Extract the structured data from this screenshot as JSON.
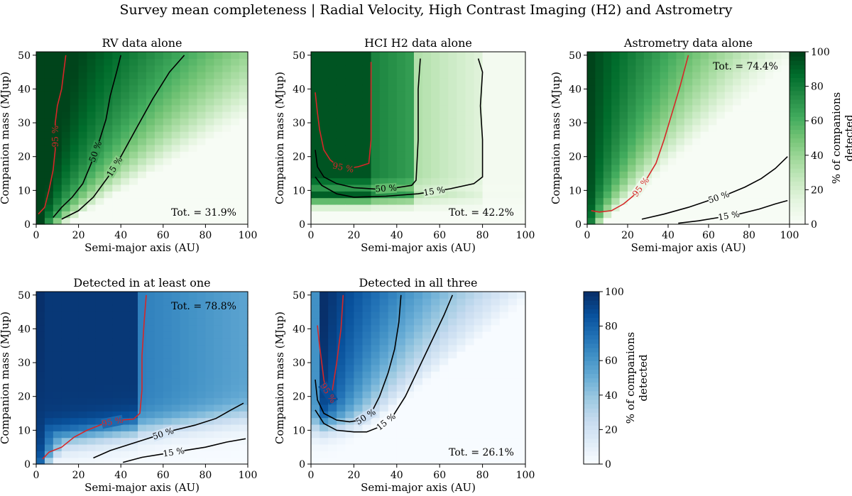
{
  "figure_title": "Survey mean completeness | Radial Velocity, High Contrast Imaging (H2) and Astrometry",
  "colors": {
    "green_max": "#00441b",
    "green_min": "#f7fcf5",
    "blue_max": "#08306b",
    "blue_min": "#f7fbff",
    "contour_95": "#d62728",
    "contour_other": "#000000"
  },
  "chart_data": [
    {
      "id": "rv",
      "type": "heatmap",
      "title": "RV data alone",
      "xlabel": "Semi-major axis (AU)",
      "ylabel": "Companion mass (MJup)",
      "xlim": [
        0,
        100
      ],
      "ylim": [
        0,
        51
      ],
      "xticks": [
        "0",
        "20",
        "40",
        "60",
        "80",
        "100"
      ],
      "yticks": [
        "0",
        "10",
        "20",
        "30",
        "40",
        "50"
      ],
      "colormap": "green",
      "total_label": "Tot. = 31.9%",
      "contours": [
        {
          "level": "95 %",
          "color": "red",
          "points": [
            [
              1,
              3
            ],
            [
              4,
              5
            ],
            [
              6,
              10
            ],
            [
              8,
              16
            ],
            [
              9,
              22
            ],
            [
              9,
              30
            ],
            [
              10,
              35
            ],
            [
              12,
              40
            ],
            [
              13,
              45
            ],
            [
              14,
              50
            ]
          ]
        },
        {
          "level": "50 %",
          "color": "black",
          "points": [
            [
              8,
              2
            ],
            [
              12,
              5
            ],
            [
              17,
              8
            ],
            [
              22,
              12
            ],
            [
              26,
              18
            ],
            [
              30,
              25
            ],
            [
              33,
              31
            ],
            [
              35,
              38
            ],
            [
              38,
              45
            ],
            [
              40,
              50
            ]
          ]
        },
        {
          "level": "15 %",
          "color": "black",
          "points": [
            [
              12,
              1.5
            ],
            [
              20,
              4
            ],
            [
              27,
              8
            ],
            [
              34,
              14
            ],
            [
              40,
              20
            ],
            [
              47,
              28
            ],
            [
              55,
              37
            ],
            [
              63,
              45
            ],
            [
              70,
              50
            ]
          ]
        }
      ]
    },
    {
      "id": "hci",
      "type": "heatmap",
      "title": "HCI H2 data alone",
      "xlabel": "Semi-major axis (AU)",
      "ylabel": "Companion mass (MJup)",
      "xlim": [
        0,
        100
      ],
      "ylim": [
        0,
        51
      ],
      "xticks": [
        "0",
        "20",
        "40",
        "60",
        "80",
        "100"
      ],
      "yticks": [
        "0",
        "10",
        "20",
        "30",
        "40",
        "50"
      ],
      "colormap": "green",
      "total_label": "Tot. = 42.2%",
      "contours": [
        {
          "level": "95 %",
          "color": "red",
          "points": [
            [
              2,
              39
            ],
            [
              3,
              33
            ],
            [
              4,
              28
            ],
            [
              6,
              22
            ],
            [
              9,
              19
            ],
            [
              13,
              17
            ],
            [
              17,
              16.5
            ],
            [
              22,
              17
            ],
            [
              27,
              18
            ],
            [
              28,
              25
            ],
            [
              28,
              38
            ],
            [
              28,
              48
            ]
          ]
        },
        {
          "level": "50 %",
          "color": "black",
          "points": [
            [
              2,
              22
            ],
            [
              3,
              17
            ],
            [
              6,
              14
            ],
            [
              12,
              12
            ],
            [
              20,
              10.8
            ],
            [
              30,
              10.4
            ],
            [
              40,
              10.8
            ],
            [
              47,
              11.5
            ],
            [
              49,
              13
            ],
            [
              50,
              25
            ],
            [
              50,
              40
            ],
            [
              51,
              49
            ]
          ]
        },
        {
          "level": "15 %",
          "color": "black",
          "points": [
            [
              2,
              14
            ],
            [
              5,
              11.5
            ],
            [
              12,
              9
            ],
            [
              20,
              8
            ],
            [
              35,
              8.3
            ],
            [
              50,
              9
            ],
            [
              65,
              10.5
            ],
            [
              76,
              12
            ],
            [
              80,
              14
            ],
            [
              80,
              25
            ],
            [
              79,
              35
            ],
            [
              80,
              45
            ],
            [
              78,
              49
            ]
          ]
        }
      ]
    },
    {
      "id": "astro",
      "type": "heatmap",
      "title": "Astrometry data alone",
      "xlabel": "Semi-major axis (AU)",
      "ylabel": "Companion mass (MJup)",
      "xlim": [
        0,
        100
      ],
      "ylim": [
        0,
        51
      ],
      "xticks": [
        "0",
        "20",
        "40",
        "60",
        "80",
        "100"
      ],
      "yticks": [
        "0",
        "10",
        "20",
        "30",
        "40",
        "50"
      ],
      "colormap": "green",
      "total_label": "Tot. = 74.4%",
      "colorbar": {
        "label": "% of companions detected",
        "ticks": [
          "0",
          "20",
          "40",
          "60",
          "80",
          "100"
        ]
      },
      "contours": [
        {
          "level": "95 %",
          "color": "red",
          "points": [
            [
              2,
              4
            ],
            [
              6,
              3.6
            ],
            [
              12,
              4
            ],
            [
              18,
              6
            ],
            [
              24,
              9
            ],
            [
              29,
              13
            ],
            [
              34,
              18
            ],
            [
              38,
              25
            ],
            [
              42,
              33
            ],
            [
              46,
              41
            ],
            [
              50,
              50
            ]
          ]
        },
        {
          "level": "50 %",
          "color": "black",
          "points": [
            [
              27,
              1.5
            ],
            [
              38,
              3
            ],
            [
              50,
              5
            ],
            [
              60,
              7
            ],
            [
              70,
              9
            ],
            [
              78,
              11
            ],
            [
              86,
              13.5
            ],
            [
              93,
              16.5
            ],
            [
              99,
              20
            ]
          ]
        },
        {
          "level": "15 %",
          "color": "black",
          "points": [
            [
              45,
              0.3
            ],
            [
              55,
              1
            ],
            [
              65,
              2
            ],
            [
              75,
              3
            ],
            [
              85,
              4.5
            ],
            [
              93,
              6
            ],
            [
              99,
              7
            ]
          ]
        }
      ]
    },
    {
      "id": "any",
      "type": "heatmap",
      "title": "Detected in at least one",
      "xlabel": "Semi-major axis (AU)",
      "ylabel": "Companion mass (MJup)",
      "xlim": [
        0,
        100
      ],
      "ylim": [
        0,
        51
      ],
      "xticks": [
        "0",
        "20",
        "40",
        "60",
        "80",
        "100"
      ],
      "yticks": [
        "0",
        "10",
        "20",
        "30",
        "40",
        "50"
      ],
      "colormap": "blue",
      "total_label": "Tot. = 78.8%",
      "contours": [
        {
          "level": "95 %",
          "color": "red",
          "points": [
            [
              3,
              1.5
            ],
            [
              6,
              3.5
            ],
            [
              12,
              5
            ],
            [
              18,
              8
            ],
            [
              24,
              10
            ],
            [
              32,
              12
            ],
            [
              40,
              13
            ],
            [
              46,
              13.3
            ],
            [
              49,
              15
            ],
            [
              50,
              22
            ],
            [
              50,
              32
            ],
            [
              51,
              42
            ],
            [
              52,
              50
            ]
          ]
        },
        {
          "level": "50 %",
          "color": "black",
          "points": [
            [
              27,
              1.8
            ],
            [
              35,
              4
            ],
            [
              45,
              6
            ],
            [
              55,
              8
            ],
            [
              65,
              10
            ],
            [
              75,
              11.5
            ],
            [
              85,
              13.5
            ],
            [
              92,
              16
            ],
            [
              98,
              18
            ]
          ]
        },
        {
          "level": "15 %",
          "color": "black",
          "points": [
            [
              41,
              0.5
            ],
            [
              50,
              2
            ],
            [
              60,
              3
            ],
            [
              70,
              4
            ],
            [
              80,
              5
            ],
            [
              90,
              6.5
            ],
            [
              99,
              7.5
            ]
          ]
        }
      ]
    },
    {
      "id": "all",
      "type": "heatmap",
      "title": "Detected in all three",
      "xlabel": "Semi-major axis (AU)",
      "ylabel": "Companion mass (MJup)",
      "xlim": [
        0,
        100
      ],
      "ylim": [
        0,
        51
      ],
      "xticks": [
        "0",
        "20",
        "40",
        "60",
        "80",
        "100"
      ],
      "yticks": [
        "0",
        "10",
        "20",
        "30",
        "40",
        "50"
      ],
      "colormap": "blue",
      "total_label": "Tot. = 26.1%",
      "colorbar": {
        "label": "% of companions detected",
        "ticks": [
          "0",
          "20",
          "40",
          "60",
          "80",
          "100"
        ]
      },
      "contours": [
        {
          "level": "95 %",
          "color": "red",
          "points": [
            [
              3,
              41
            ],
            [
              4,
              35
            ],
            [
              5,
              30
            ],
            [
              6,
              25
            ],
            [
              7,
              22
            ],
            [
              9,
              20
            ],
            [
              10,
              22
            ],
            [
              12,
              30
            ],
            [
              14,
              40
            ],
            [
              15,
              50
            ]
          ]
        },
        {
          "level": "50 %",
          "color": "black",
          "points": [
            [
              2,
              25
            ],
            [
              3,
              19
            ],
            [
              6,
              15
            ],
            [
              12,
              13
            ],
            [
              18,
              12.5
            ],
            [
              23,
              13
            ],
            [
              28,
              15
            ],
            [
              32,
              20
            ],
            [
              36,
              27
            ],
            [
              39,
              34
            ],
            [
              41,
              42
            ],
            [
              42,
              50
            ]
          ]
        },
        {
          "level": "15 %",
          "color": "black",
          "points": [
            [
              2,
              16
            ],
            [
              6,
              12
            ],
            [
              12,
              10
            ],
            [
              20,
              9.5
            ],
            [
              26,
              9.5
            ],
            [
              32,
              11
            ],
            [
              38,
              14
            ],
            [
              44,
              20
            ],
            [
              50,
              28
            ],
            [
              56,
              36
            ],
            [
              62,
              44
            ],
            [
              66,
              50
            ]
          ]
        }
      ]
    }
  ]
}
